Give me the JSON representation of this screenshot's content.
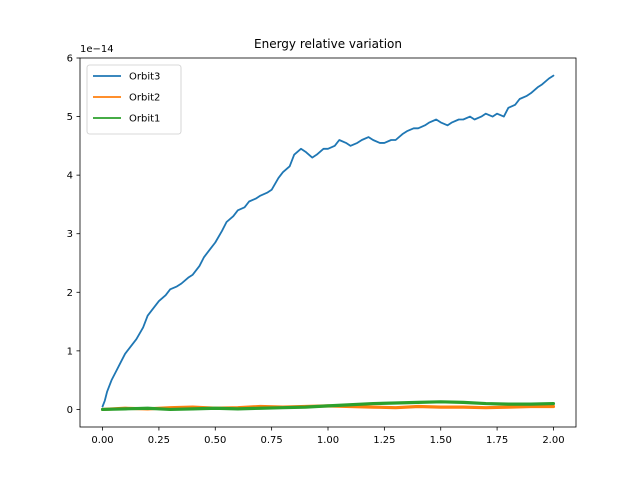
{
  "chart_data": {
    "type": "line",
    "title": "Energy relative variation",
    "xlabel": "",
    "ylabel": "",
    "y_offset_text": "1e−14",
    "xlim": [
      -0.1,
      2.1
    ],
    "ylim": [
      -0.3,
      6.0
    ],
    "x_ticks": [
      0.0,
      0.25,
      0.5,
      0.75,
      1.0,
      1.25,
      1.5,
      1.75,
      2.0
    ],
    "x_tick_labels": [
      "0.00",
      "0.25",
      "0.50",
      "0.75",
      "1.00",
      "1.25",
      "1.50",
      "1.75",
      "2.00"
    ],
    "y_ticks": [
      0,
      1,
      2,
      3,
      4,
      5,
      6
    ],
    "y_tick_labels": [
      "0",
      "1",
      "2",
      "3",
      "4",
      "5",
      "6"
    ],
    "grid": false,
    "legend_position": "top-left",
    "series": [
      {
        "name": "Orbit3",
        "color": "#1f77b4",
        "x": [
          0.0,
          0.01,
          0.02,
          0.04,
          0.06,
          0.08,
          0.1,
          0.12,
          0.15,
          0.18,
          0.2,
          0.22,
          0.25,
          0.28,
          0.3,
          0.33,
          0.35,
          0.38,
          0.4,
          0.43,
          0.45,
          0.48,
          0.5,
          0.53,
          0.55,
          0.58,
          0.6,
          0.63,
          0.65,
          0.68,
          0.7,
          0.73,
          0.75,
          0.78,
          0.8,
          0.83,
          0.85,
          0.88,
          0.9,
          0.93,
          0.95,
          0.98,
          1.0,
          1.03,
          1.05,
          1.08,
          1.1,
          1.13,
          1.15,
          1.18,
          1.2,
          1.23,
          1.25,
          1.28,
          1.3,
          1.33,
          1.35,
          1.38,
          1.4,
          1.43,
          1.45,
          1.48,
          1.5,
          1.53,
          1.55,
          1.58,
          1.6,
          1.63,
          1.65,
          1.68,
          1.7,
          1.73,
          1.75,
          1.78,
          1.8,
          1.83,
          1.85,
          1.88,
          1.9,
          1.93,
          1.95,
          1.98,
          2.0
        ],
        "values": [
          0.05,
          0.15,
          0.3,
          0.5,
          0.65,
          0.8,
          0.95,
          1.05,
          1.2,
          1.4,
          1.6,
          1.7,
          1.85,
          1.95,
          2.05,
          2.1,
          2.15,
          2.25,
          2.3,
          2.45,
          2.6,
          2.75,
          2.85,
          3.05,
          3.2,
          3.3,
          3.4,
          3.45,
          3.55,
          3.6,
          3.65,
          3.7,
          3.75,
          3.95,
          4.05,
          4.15,
          4.35,
          4.45,
          4.4,
          4.3,
          4.35,
          4.45,
          4.45,
          4.5,
          4.6,
          4.55,
          4.5,
          4.55,
          4.6,
          4.65,
          4.6,
          4.55,
          4.55,
          4.6,
          4.6,
          4.7,
          4.75,
          4.8,
          4.8,
          4.85,
          4.9,
          4.95,
          4.9,
          4.85,
          4.9,
          4.95,
          4.95,
          5.0,
          4.95,
          5.0,
          5.05,
          5.0,
          5.05,
          5.0,
          5.15,
          5.2,
          5.3,
          5.35,
          5.4,
          5.5,
          5.55,
          5.65,
          5.7
        ]
      },
      {
        "name": "Orbit2",
        "color": "#ff7f0e",
        "x": [
          0.0,
          0.1,
          0.2,
          0.3,
          0.4,
          0.5,
          0.6,
          0.7,
          0.8,
          0.9,
          1.0,
          1.1,
          1.2,
          1.3,
          1.4,
          1.5,
          1.6,
          1.7,
          1.8,
          1.9,
          2.0
        ],
        "values": [
          0.0,
          0.02,
          0.01,
          0.03,
          0.04,
          0.02,
          0.03,
          0.05,
          0.04,
          0.05,
          0.06,
          0.05,
          0.04,
          0.03,
          0.05,
          0.04,
          0.04,
          0.03,
          0.04,
          0.05,
          0.05
        ]
      },
      {
        "name": "Orbit1",
        "color": "#2ca02c",
        "x": [
          0.0,
          0.1,
          0.2,
          0.3,
          0.4,
          0.5,
          0.6,
          0.7,
          0.8,
          0.9,
          1.0,
          1.1,
          1.2,
          1.3,
          1.4,
          1.5,
          1.6,
          1.7,
          1.8,
          1.9,
          2.0
        ],
        "values": [
          0.0,
          0.01,
          0.02,
          0.0,
          0.01,
          0.02,
          0.01,
          0.02,
          0.03,
          0.04,
          0.06,
          0.08,
          0.1,
          0.11,
          0.12,
          0.13,
          0.12,
          0.1,
          0.09,
          0.09,
          0.1
        ]
      }
    ]
  }
}
